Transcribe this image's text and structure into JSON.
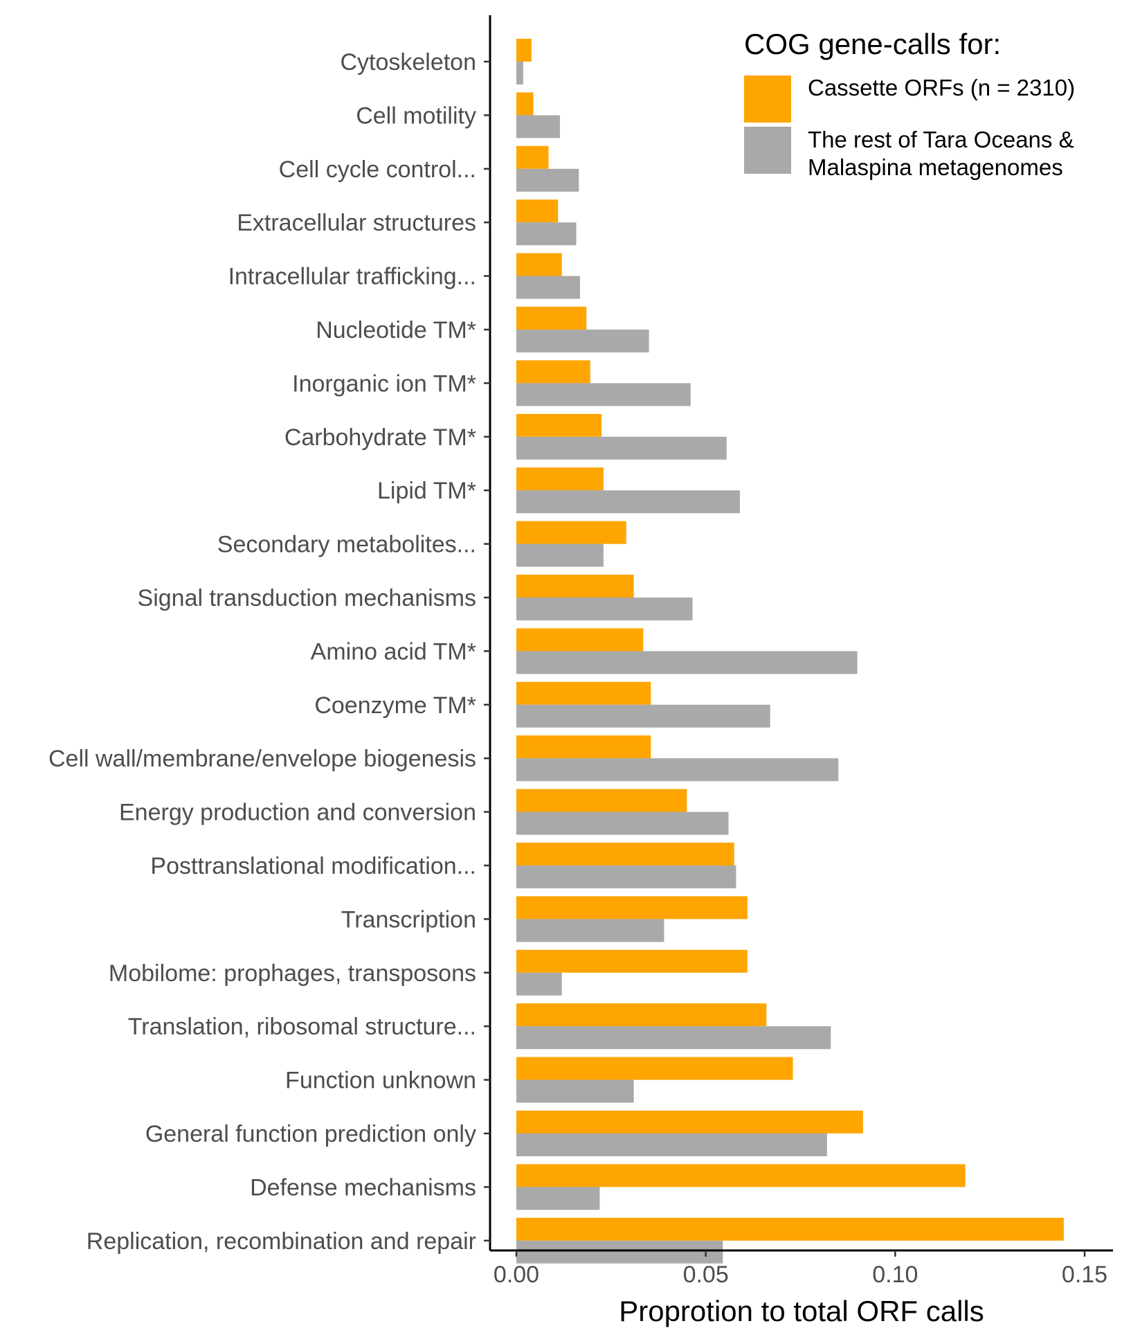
{
  "chart_data": {
    "type": "bar",
    "orientation": "horizontal",
    "xlabel": "Proprotion to total ORF calls",
    "xlim": [
      -0.0075,
      0.157
    ],
    "xticks": [
      "0.00",
      "0.05",
      "0.10",
      "0.15"
    ],
    "xtick_values": [
      0,
      0.05,
      0.1,
      0.15
    ],
    "grid": false,
    "legend_position": "top-right",
    "legend": {
      "title": "COG gene-calls for:",
      "items": [
        {
          "label_lines": [
            "Cassette ORFs (n = 2310)"
          ],
          "color": "#FFA500"
        },
        {
          "label_lines": [
            "The rest of Tara Oceans &",
            "Malaspina metagenomes"
          ],
          "color": "#A9A9A9"
        }
      ]
    },
    "categories": [
      "Cytoskeleton",
      "Cell motility",
      "Cell cycle control...",
      "Extracellular structures",
      "Intracellular trafficking...",
      "Nucleotide TM*",
      "Inorganic ion TM*",
      "Carbohydrate TM*",
      "Lipid TM*",
      "Secondary metabolites...",
      "Signal transduction mechanisms",
      "Amino acid TM*",
      "Coenzyme TM*",
      "Cell wall/membrane/envelope biogenesis",
      "Energy production and conversion",
      "Posttranslational modification...",
      "Transcription",
      "Mobilome: prophages, transposons",
      "Translation, ribosomal structure...",
      "Function unknown",
      "General function prediction only",
      "Defense mechanisms",
      "Replication, recombination and repair"
    ],
    "series": [
      {
        "name": "Cassette ORFs (n = 2310)",
        "color": "#FFA500",
        "values": [
          0.004,
          0.0045,
          0.0085,
          0.011,
          0.012,
          0.0185,
          0.0195,
          0.0225,
          0.023,
          0.029,
          0.031,
          0.0335,
          0.0355,
          0.0355,
          0.045,
          0.0575,
          0.061,
          0.061,
          0.066,
          0.073,
          0.0915,
          0.1185,
          0.1445
        ]
      },
      {
        "name": "The rest of Tara Oceans & Malaspina metagenomes",
        "color": "#A9A9A9",
        "values": [
          0.0018,
          0.0115,
          0.0165,
          0.0158,
          0.0168,
          0.035,
          0.046,
          0.0555,
          0.059,
          0.023,
          0.0465,
          0.09,
          0.067,
          0.085,
          0.056,
          0.058,
          0.039,
          0.012,
          0.083,
          0.031,
          0.082,
          0.022,
          0.0545
        ]
      }
    ]
  }
}
